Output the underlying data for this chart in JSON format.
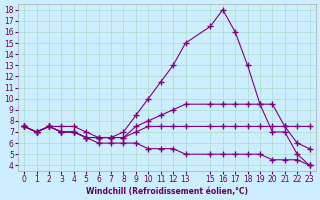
{
  "xlabel": "Windchill (Refroidissement éolien,°C)",
  "ylabel": "",
  "bg_color": "#cceeff",
  "line_color": "#800080",
  "grid_color": "#aaddcc",
  "x_ticks": [
    0,
    1,
    2,
    3,
    4,
    5,
    6,
    7,
    8,
    9,
    10,
    11,
    12,
    13,
    15,
    16,
    17,
    18,
    19,
    20,
    21,
    22,
    23
  ],
  "ylim": [
    3.5,
    18.5
  ],
  "xlim": [
    -0.5,
    23.5
  ],
  "yticks": [
    4,
    5,
    6,
    7,
    8,
    9,
    10,
    11,
    12,
    13,
    14,
    15,
    16,
    17,
    18
  ],
  "line1_x": [
    0,
    1,
    2,
    3,
    4,
    5,
    6,
    7,
    8,
    9,
    10,
    11,
    12,
    13,
    15,
    16,
    17,
    18,
    19,
    20,
    21,
    22,
    23
  ],
  "line1_y": [
    7.5,
    7.0,
    7.5,
    7.5,
    7.5,
    7.0,
    6.5,
    6.5,
    7.0,
    8.5,
    10.0,
    11.5,
    13.0,
    15.0,
    16.5,
    18.0,
    16.0,
    13.0,
    9.5,
    7.0,
    7.0,
    5.0,
    4.0
  ],
  "line2_x": [
    0,
    1,
    2,
    3,
    4,
    5,
    6,
    7,
    8,
    9,
    10,
    11,
    12,
    13,
    15,
    16,
    17,
    18,
    19,
    20,
    21,
    22,
    23
  ],
  "line2_y": [
    7.5,
    7.0,
    7.5,
    7.0,
    7.0,
    6.5,
    6.5,
    6.5,
    6.5,
    7.5,
    8.0,
    8.5,
    9.0,
    9.5,
    9.5,
    9.5,
    9.5,
    9.5,
    9.5,
    9.5,
    7.5,
    7.5,
    7.5
  ],
  "line3_x": [
    0,
    1,
    2,
    3,
    4,
    5,
    6,
    7,
    8,
    9,
    10,
    11,
    12,
    13,
    15,
    16,
    17,
    18,
    19,
    20,
    21,
    22,
    23
  ],
  "line3_y": [
    7.5,
    7.0,
    7.5,
    7.0,
    7.0,
    6.5,
    6.5,
    6.5,
    6.5,
    7.0,
    7.5,
    7.5,
    7.5,
    7.5,
    7.5,
    7.5,
    7.5,
    7.5,
    7.5,
    7.5,
    7.5,
    6.0,
    5.5
  ],
  "line4_x": [
    0,
    1,
    2,
    3,
    4,
    5,
    6,
    7,
    8,
    9,
    10,
    11,
    12,
    13,
    15,
    16,
    17,
    18,
    19,
    20,
    21,
    22,
    23
  ],
  "line4_y": [
    7.5,
    7.0,
    7.5,
    7.0,
    7.0,
    6.5,
    6.0,
    6.0,
    6.0,
    6.0,
    5.5,
    5.5,
    5.5,
    5.0,
    5.0,
    5.0,
    5.0,
    5.0,
    5.0,
    4.5,
    4.5,
    4.5,
    4.0
  ]
}
